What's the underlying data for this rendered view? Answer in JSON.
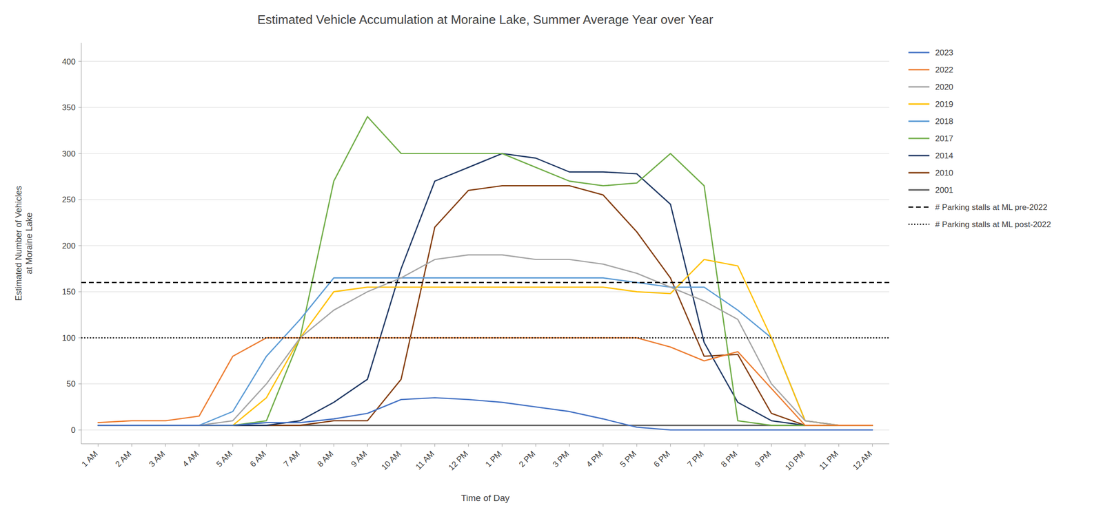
{
  "chart_data": {
    "type": "line",
    "title": "Estimated Vehicle Accumulation at Moraine Lake, Summer Average Year over Year",
    "x_label": "Time of Day",
    "y_label": "Estimated Number of Vehicles\nat Moraine Lake",
    "categories": [
      "1 AM",
      "2 AM",
      "3 AM",
      "4 AM",
      "5 AM",
      "6 AM",
      "7 AM",
      "8 AM",
      "9 AM",
      "10 AM",
      "11 AM",
      "12 PM",
      "1 PM",
      "2 PM",
      "3 PM",
      "4 PM",
      "5 PM",
      "6 PM",
      "7 PM",
      "8 PM",
      "9 PM",
      "10 PM",
      "11 PM",
      "12 AM"
    ],
    "ylim": [
      -15,
      420
    ],
    "yticks": [
      0,
      50,
      100,
      150,
      200,
      250,
      300,
      350,
      400
    ],
    "grid": true,
    "legend": "right",
    "series": [
      {
        "name": "2023",
        "color": "#4472C4",
        "values": [
          5,
          5,
          5,
          5,
          5,
          8,
          8,
          12,
          18,
          33,
          35,
          33,
          30,
          25,
          20,
          12,
          3,
          0,
          0,
          0,
          0,
          0,
          0,
          0
        ]
      },
      {
        "name": "2022",
        "color": "#ED7D31",
        "values": [
          8,
          10,
          10,
          15,
          80,
          100,
          100,
          100,
          100,
          100,
          100,
          100,
          100,
          100,
          100,
          100,
          100,
          90,
          75,
          85,
          45,
          5,
          5,
          5
        ]
      },
      {
        "name": "2020",
        "color": "#A5A5A5",
        "values": [
          5,
          5,
          5,
          5,
          10,
          50,
          100,
          130,
          150,
          165,
          185,
          190,
          190,
          185,
          185,
          180,
          170,
          155,
          140,
          120,
          50,
          10,
          5,
          5
        ]
      },
      {
        "name": "2019",
        "color": "#FFC000",
        "values": [
          5,
          5,
          5,
          5,
          5,
          35,
          100,
          150,
          155,
          155,
          155,
          155,
          155,
          155,
          155,
          155,
          150,
          148,
          185,
          178,
          100,
          10,
          5,
          5
        ]
      },
      {
        "name": "2018",
        "color": "#5B9BD5",
        "values": [
          5,
          5,
          5,
          5,
          20,
          80,
          120,
          165,
          165,
          165,
          165,
          165,
          165,
          165,
          165,
          165,
          160,
          155,
          155,
          130,
          100,
          10,
          5,
          5
        ]
      },
      {
        "name": "2017",
        "color": "#70AD47",
        "values": [
          5,
          5,
          5,
          5,
          5,
          10,
          100,
          270,
          340,
          300,
          300,
          300,
          300,
          285,
          270,
          265,
          268,
          300,
          265,
          10,
          5,
          5,
          5,
          5
        ]
      },
      {
        "name": "2014",
        "color": "#1F3864",
        "values": [
          5,
          5,
          5,
          5,
          5,
          5,
          10,
          30,
          55,
          175,
          270,
          285,
          300,
          295,
          280,
          280,
          278,
          245,
          95,
          30,
          10,
          5,
          5,
          5
        ]
      },
      {
        "name": "2010",
        "color": "#843C0C",
        "values": [
          5,
          5,
          5,
          5,
          5,
          5,
          5,
          10,
          10,
          55,
          220,
          260,
          265,
          265,
          265,
          255,
          215,
          165,
          80,
          82,
          18,
          5,
          5,
          5
        ]
      },
      {
        "name": "2001",
        "color": "#595959",
        "values": [
          5,
          5,
          5,
          5,
          5,
          5,
          5,
          5,
          5,
          5,
          5,
          5,
          5,
          5,
          5,
          5,
          5,
          5,
          5,
          5,
          5,
          5,
          5,
          5
        ]
      }
    ],
    "reference_lines": [
      {
        "name": "# Parking stalls at ML pre-2022",
        "value": 160,
        "color": "black",
        "line_style": "dashed"
      },
      {
        "name": "# Parking stalls at ML post-2022",
        "value": 100,
        "color": "black",
        "line_style": "dotted"
      }
    ]
  }
}
